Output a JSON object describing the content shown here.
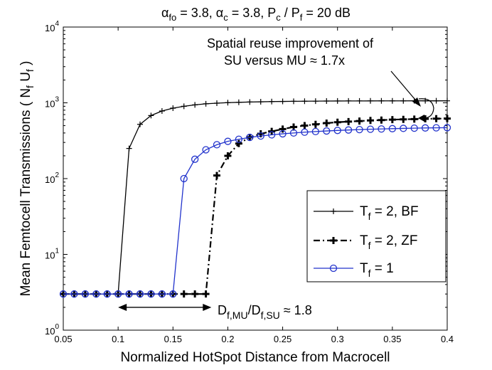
{
  "chart_data": {
    "type": "line",
    "yscale": "log",
    "title": {
      "base": "α",
      "sub1": "fo",
      "mid1": " = 3.8, α",
      "sub2": "c",
      "mid2": " = 3.8, P",
      "sub3": "c",
      "mid3": " / P",
      "sub4": "f",
      "tail": " = 20 dB"
    },
    "xlabel": "Normalized HotSpot Distance from Macrocell",
    "ylabel": {
      "main": "Mean Femtocell Transmissions  ( N",
      "sub1": "f",
      "mid": " U",
      "sub2": "f",
      "tail": " )"
    },
    "xlim": [
      0.05,
      0.4
    ],
    "ylim": [
      1,
      10000
    ],
    "xticks": [
      "0.05",
      "0.1",
      "0.15",
      "0.2",
      "0.25",
      "0.3",
      "0.35",
      "0.4"
    ],
    "xtick_values": [
      0.05,
      0.1,
      0.15,
      0.2,
      0.25,
      0.3,
      0.35,
      0.4
    ],
    "yticks": [
      {
        "base": "10",
        "exp": "0",
        "value": 1
      },
      {
        "base": "10",
        "exp": "1",
        "value": 10
      },
      {
        "base": "10",
        "exp": "2",
        "value": 100
      },
      {
        "base": "10",
        "exp": "3",
        "value": 1000
      },
      {
        "base": "10",
        "exp": "4",
        "value": 10000
      }
    ],
    "x": [
      0.05,
      0.06,
      0.07,
      0.08,
      0.09,
      0.1,
      0.11,
      0.12,
      0.13,
      0.14,
      0.15,
      0.16,
      0.17,
      0.18,
      0.19,
      0.2,
      0.21,
      0.22,
      0.23,
      0.24,
      0.25,
      0.26,
      0.27,
      0.28,
      0.29,
      0.3,
      0.31,
      0.32,
      0.33,
      0.34,
      0.35,
      0.36,
      0.37,
      0.38,
      0.39,
      0.4
    ],
    "series": [
      {
        "name": "T_f = 2, BF",
        "legend": {
          "base": "T",
          "sub": "f",
          "tail": " = 2, BF"
        },
        "color": "#000000",
        "style": "solid",
        "marker": "plus",
        "values": [
          3,
          3,
          3,
          3,
          3,
          3,
          250,
          520,
          680,
          780,
          850,
          900,
          940,
          970,
          990,
          1005,
          1015,
          1025,
          1032,
          1038,
          1043,
          1047,
          1050,
          1053,
          1055,
          1057,
          1058,
          1059,
          1060,
          1061,
          1062,
          1062,
          1063,
          1063,
          1063,
          1063
        ]
      },
      {
        "name": "T_f = 2, ZF",
        "legend": {
          "base": "T",
          "sub": "f",
          "tail": " = 2, ZF"
        },
        "color": "#000000",
        "style": "dashdot",
        "marker": "bold-plus",
        "values": [
          3,
          3,
          3,
          3,
          3,
          3,
          3,
          3,
          3,
          3,
          3,
          3,
          3,
          3,
          110,
          200,
          290,
          350,
          390,
          420,
          450,
          480,
          500,
          520,
          540,
          555,
          565,
          575,
          585,
          592,
          600,
          605,
          610,
          614,
          618,
          620
        ]
      },
      {
        "name": "T_f = 1",
        "legend": {
          "base": "T",
          "sub": "f",
          "tail": " = 1"
        },
        "color": "#2233cc",
        "style": "solid",
        "marker": "circle",
        "values": [
          3,
          3,
          3,
          3,
          3,
          3,
          3,
          3,
          3,
          3,
          3,
          100,
          180,
          240,
          280,
          310,
          330,
          350,
          365,
          378,
          390,
          400,
          410,
          418,
          425,
          432,
          438,
          443,
          448,
          452,
          456,
          460,
          463,
          466,
          468,
          470
        ]
      }
    ],
    "legend_position": "lower-right",
    "annotations": {
      "reuse_line1": "Spatial reuse improvement of",
      "reuse_line2": "SU versus MU ≈ 1.7x",
      "ratio": {
        "p1": "D",
        "s1": "f,MU",
        "p2": "/D",
        "s2": "f,SU",
        "tail": " ≈ 1.8"
      },
      "arrow_range_x": [
        0.1,
        0.185
      ],
      "arrow_y": 2.0
    }
  }
}
